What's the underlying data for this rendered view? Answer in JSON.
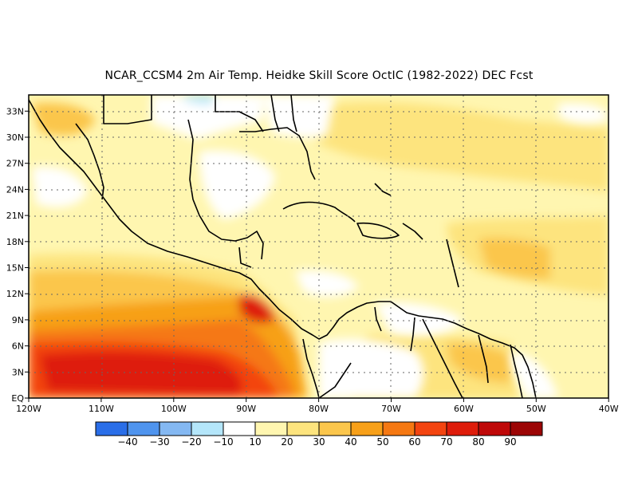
{
  "title": "NCAR_CCSM4  2m Air Temp. Heidke Skill Score OctIC (1982-2022) DEC Fcst",
  "map": {
    "lat_labels": [
      "EQ",
      "3N",
      "6N",
      "9N",
      "12N",
      "15N",
      "18N",
      "21N",
      "24N",
      "27N",
      "30N",
      "33N"
    ],
    "lon_labels": [
      "120W",
      "110W",
      "100W",
      "90W",
      "80W",
      "70W",
      "60W",
      "50W",
      "40W"
    ],
    "grid": "dotted"
  },
  "colorbar": {
    "colors": [
      "#2a6ee8",
      "#4f94ee",
      "#84b8f2",
      "#b4e6fa",
      "#ffffff",
      "#fff6b0",
      "#fde47e",
      "#fbc64c",
      "#f7a019",
      "#f57812",
      "#f34410",
      "#de1c0a",
      "#bf0808",
      "#9c0505"
    ],
    "labels": [
      "-40",
      "-30",
      "-20",
      "-10",
      "10",
      "20",
      "30",
      "40",
      "50",
      "60",
      "70",
      "80",
      "90"
    ]
  }
}
